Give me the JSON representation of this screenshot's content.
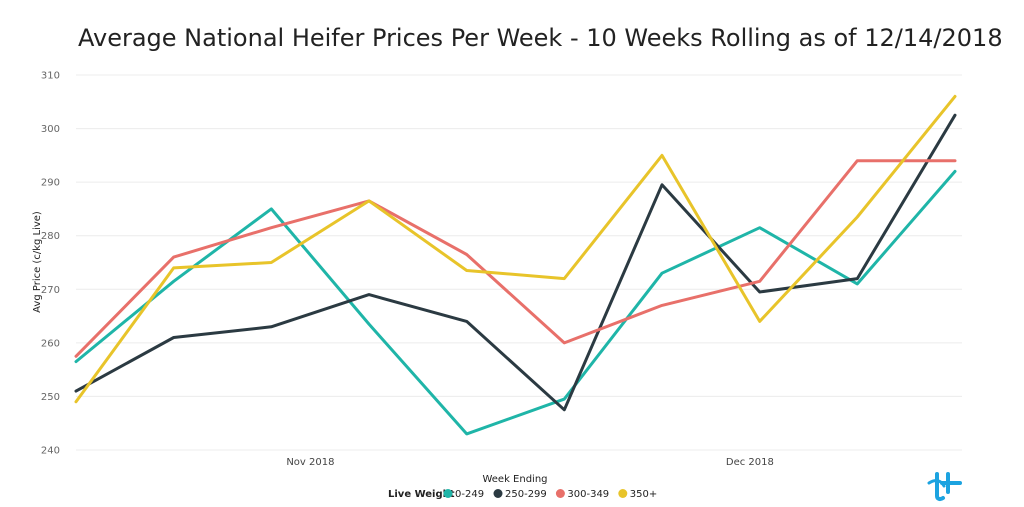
{
  "chart_data": {
    "type": "line",
    "title": "Average National Heifer Prices Per Week - 10 Weeks Rolling as of 12/14/2018",
    "xlabel": "Week Ending",
    "ylabel": "Avg Price (c/kg Live)",
    "ylim": [
      240,
      310
    ],
    "yticks": [
      240,
      250,
      260,
      270,
      280,
      290,
      300,
      310
    ],
    "grid": true,
    "legend": {
      "placement": "bottom-center",
      "title": "Live Weight"
    },
    "x_tick_labels": [
      {
        "label": "Nov 2018",
        "index": 2.4
      },
      {
        "label": "Dec 2018",
        "index": 6.9
      }
    ],
    "x": [
      0,
      1,
      2,
      3,
      4,
      5,
      6,
      7,
      8,
      9
    ],
    "series": [
      {
        "name": "0-249",
        "color": "#1fb5a8",
        "values": [
          256.5,
          271.5,
          285,
          263.5,
          243,
          249.5,
          273,
          281.5,
          271,
          292
        ]
      },
      {
        "name": "250-299",
        "color": "#2b3a42",
        "values": [
          251,
          261,
          263,
          269,
          264,
          247.5,
          289.5,
          269.5,
          272,
          302.5
        ]
      },
      {
        "name": "300-349",
        "color": "#e8706a",
        "values": [
          257.5,
          276,
          281.5,
          286.5,
          276.5,
          260,
          267,
          271.5,
          294,
          294
        ]
      },
      {
        "name": "350+",
        "color": "#e8c42a",
        "values": [
          249,
          274,
          275,
          286.5,
          273.5,
          272,
          295,
          264,
          283.5,
          306
        ]
      }
    ]
  },
  "logo": {
    "icon": "tt-brand-logo-icon",
    "color": "#1ca3e0"
  }
}
